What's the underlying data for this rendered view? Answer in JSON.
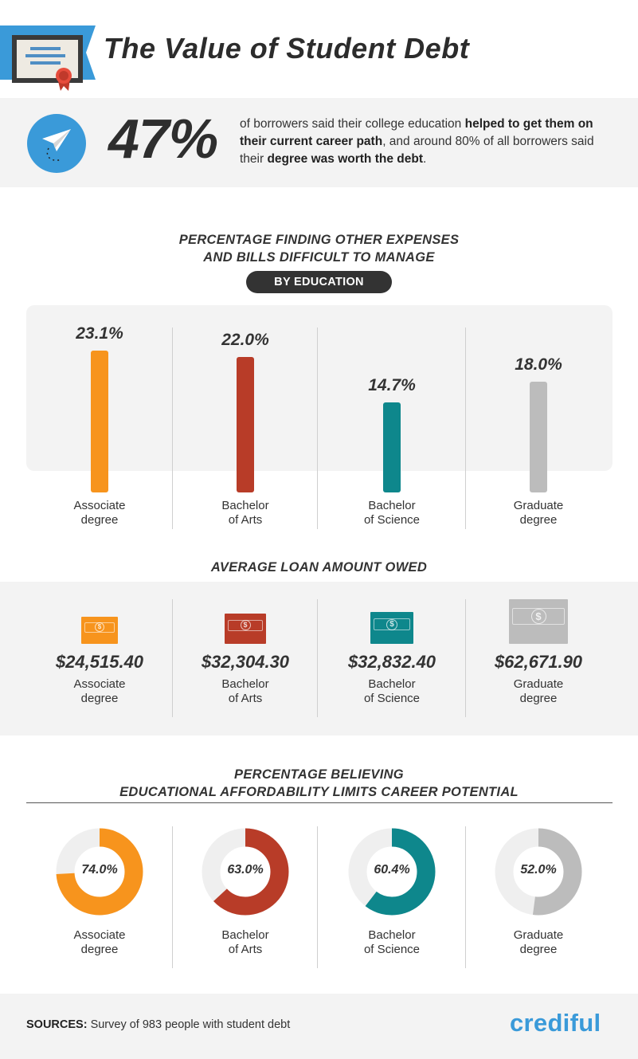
{
  "header": {
    "title": "The Value of Student Debt",
    "icon": "certificate-icon"
  },
  "stat": {
    "icon": "paper-plane-icon",
    "percent": "47%",
    "text_part1": "of borrowers said their college education ",
    "text_bold1": "helped to get them on their current career path",
    "text_part2": ", and around 80% of all borrowers said their ",
    "text_bold2": "degree was worth the debt",
    "text_part3": "."
  },
  "section1": {
    "title_line1": "PERCENTAGE FINDING OTHER EXPENSES",
    "title_line2": "AND BILLS DIFFICULT TO MANAGE",
    "pill": "BY EDUCATION"
  },
  "section2": {
    "title": "AVERAGE LOAN AMOUNT OWED"
  },
  "section3": {
    "title_line1": "PERCENTAGE BELIEVING",
    "title_line2": "EDUCATIONAL AFFORDABILITY LIMITS CAREER POTENTIAL"
  },
  "categories": [
    {
      "line1": "Associate",
      "line2": "degree"
    },
    {
      "line1": "Bachelor",
      "line2": "of Arts"
    },
    {
      "line1": "Bachelor",
      "line2": "of Science"
    },
    {
      "line1": "Graduate",
      "line2": "degree"
    }
  ],
  "colors": [
    "#f7941d",
    "#b83c28",
    "#0e878c",
    "#bcbcbc"
  ],
  "chart_data": [
    {
      "type": "bar",
      "title": "PERCENTAGE FINDING OTHER EXPENSES AND BILLS DIFFICULT TO MANAGE",
      "subtitle": "BY EDUCATION",
      "categories": [
        "Associate degree",
        "Bachelor of Arts",
        "Bachelor of Science",
        "Graduate degree"
      ],
      "values": [
        23.1,
        22.0,
        14.7,
        18.0
      ],
      "value_labels": [
        "23.1%",
        "22.0%",
        "14.7%",
        "18.0%"
      ],
      "ylim": [
        0,
        23.1
      ]
    },
    {
      "type": "table",
      "title": "AVERAGE LOAN AMOUNT OWED",
      "categories": [
        "Associate degree",
        "Bachelor of Arts",
        "Bachelor of Science",
        "Graduate degree"
      ],
      "values": [
        24515.4,
        32304.3,
        32832.4,
        62671.9
      ],
      "value_labels": [
        "$24,515.40",
        "$32,304.30",
        "$32,832.40",
        "$62,671.90"
      ],
      "icon": "dollar-bill-icon"
    },
    {
      "type": "pie",
      "title": "PERCENTAGE BELIEVING EDUCATIONAL AFFORDABILITY LIMITS CAREER POTENTIAL",
      "categories": [
        "Associate degree",
        "Bachelor of Arts",
        "Bachelor of Science",
        "Graduate degree"
      ],
      "values": [
        74.0,
        63.0,
        60.4,
        52.0
      ],
      "value_labels": [
        "74.0%",
        "63.0%",
        "60.4%",
        "52.0%"
      ]
    }
  ],
  "footer": {
    "sources_label": "SOURCES:",
    "sources_text": " Survey of 983 people with student debt",
    "brand": "crediful"
  }
}
